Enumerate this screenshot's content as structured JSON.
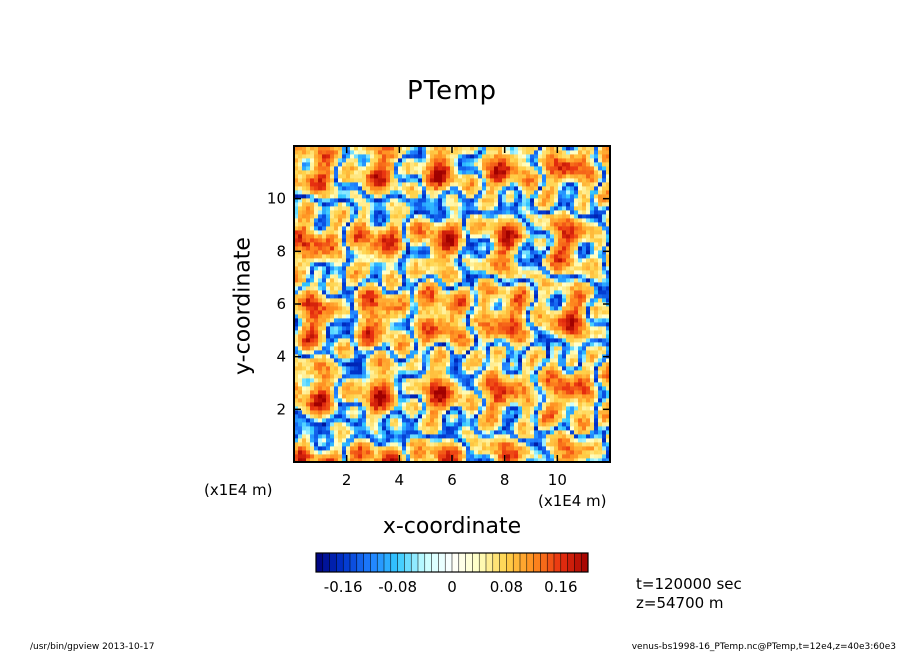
{
  "chart_data": {
    "type": "heatmap",
    "title": "PTemp",
    "xlabel": "x-coordinate",
    "ylabel": "y-coordinate",
    "x_unit": "(x1E4 m)",
    "y_unit": "(x1E4 m)",
    "xlim": [
      0,
      12
    ],
    "ylim": [
      0,
      12
    ],
    "x_ticks": [
      "2",
      "4",
      "6",
      "8",
      "10"
    ],
    "y_ticks": [
      "2",
      "4",
      "6",
      "8",
      "10"
    ],
    "x_tick_values": [
      2,
      4,
      6,
      8,
      10
    ],
    "y_tick_values": [
      2,
      4,
      6,
      8,
      10
    ],
    "colorbar": {
      "min": -0.2,
      "max": 0.2,
      "tick_labels": [
        "-0.16",
        "-0.08",
        "0",
        "0.08",
        "0.16"
      ],
      "tick_values": [
        -0.16,
        -0.08,
        0,
        0.08,
        0.16
      ],
      "colors_low_to_high": [
        "#00007a",
        "#0033cc",
        "#1f7fff",
        "#33c8ff",
        "#c8ffff",
        "#ffffff",
        "#ffffc0",
        "#ffd24a",
        "#ff8c1f",
        "#e83010",
        "#a00000"
      ]
    },
    "legend": "bottom"
  },
  "annotations": {
    "time": "t=120000 sec",
    "height": "z=54700 m"
  },
  "footer": {
    "left": "/usr/bin/gpview   2013-10-17",
    "right": "venus-bs1998-16_PTemp.nc@PTemp,t=12e4,z=40e3:60e3"
  }
}
